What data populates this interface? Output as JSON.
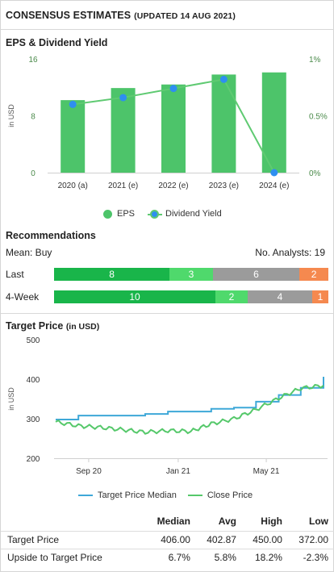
{
  "header": {
    "title": "CONSENSUS ESTIMATES",
    "updated": "(UPDATED 14 AUG 2021)"
  },
  "eps_section": {
    "title": "EPS & Dividend Yield",
    "legend": {
      "eps": "EPS",
      "dividend_yield": "Dividend Yield"
    }
  },
  "recommendations": {
    "title": "Recommendations",
    "mean": "Mean: Buy",
    "analysts": "No. Analysts: 19",
    "rows": [
      {
        "label": "Last",
        "segments": [
          {
            "value": "8",
            "count": 8,
            "color": "#19b54a"
          },
          {
            "value": "3",
            "count": 3,
            "color": "#4fd96c"
          },
          {
            "value": "6",
            "count": 6,
            "color": "#9b9b9b"
          },
          {
            "value": "2",
            "count": 2,
            "color": "#f5894f"
          }
        ]
      },
      {
        "label": "4-Week",
        "segments": [
          {
            "value": "10",
            "count": 10,
            "color": "#19b54a"
          },
          {
            "value": "2",
            "count": 2,
            "color": "#4fd96c"
          },
          {
            "value": "4",
            "count": 4,
            "color": "#9b9b9b"
          },
          {
            "value": "1",
            "count": 1,
            "color": "#f5894f"
          }
        ]
      }
    ]
  },
  "target_section": {
    "title": "Target Price",
    "unit": "(in USD)",
    "legend": {
      "median": "Target Price Median",
      "close": "Close Price"
    }
  },
  "stats": {
    "columns": [
      "Median",
      "Avg",
      "High",
      "Low"
    ],
    "rows": [
      {
        "label": "Target Price",
        "values": [
          "406.00",
          "402.87",
          "450.00",
          "372.00"
        ]
      },
      {
        "label": "Upside to Target Price",
        "values": [
          "6.7%",
          "5.8%",
          "18.2%",
          "-2.3%"
        ]
      }
    ]
  },
  "colors": {
    "eps_bar": "#4dc46a",
    "dividend_line": "#5fca72",
    "dividend_dot": "#2e8ff0",
    "median_line": "#3ea8d8",
    "close_line": "#55c86a"
  },
  "chart_data": [
    {
      "type": "bar",
      "categories": [
        "2020 (a)",
        "2021 (e)",
        "2022 (e)",
        "2023 (e)",
        "2024 (e)"
      ],
      "series": [
        {
          "name": "EPS",
          "values": [
            10.2,
            11.9,
            12.4,
            13.8,
            14.1
          ]
        },
        {
          "name": "Dividend Yield",
          "values": [
            0.6,
            0.66,
            0.74,
            0.82,
            0.0
          ]
        }
      ],
      "ylabel": "in USD",
      "ylim": [
        0,
        16
      ],
      "y_ticks": [
        "16",
        "8",
        "0"
      ],
      "y2lim": [
        0,
        1
      ],
      "y2_ticks": [
        "1%",
        "0.5%",
        "0%"
      ],
      "grid": false
    },
    {
      "type": "line",
      "ylabel": "in USD",
      "ylim": [
        200,
        500
      ],
      "y_ticks": [
        "500",
        "400",
        "300",
        "200"
      ],
      "x_ticks": [
        "Sep 20",
        "Jan 21",
        "May 21"
      ],
      "x": [
        "2020-08-01",
        "2020-09-01",
        "2020-10-01",
        "2020-11-01",
        "2020-12-01",
        "2021-01-01",
        "2021-02-01",
        "2021-03-01",
        "2021-04-01",
        "2021-05-01",
        "2021-06-01",
        "2021-07-01",
        "2021-08-01"
      ],
      "series": [
        {
          "name": "Target Price Median",
          "values": [
            298,
            308,
            308,
            308,
            312,
            318,
            318,
            325,
            328,
            343,
            360,
            378,
            406
          ]
        },
        {
          "name": "Close Price",
          "values": [
            292,
            282,
            278,
            272,
            266,
            270,
            268,
            287,
            300,
            323,
            352,
            377,
            384
          ]
        }
      ],
      "grid": false
    }
  ]
}
